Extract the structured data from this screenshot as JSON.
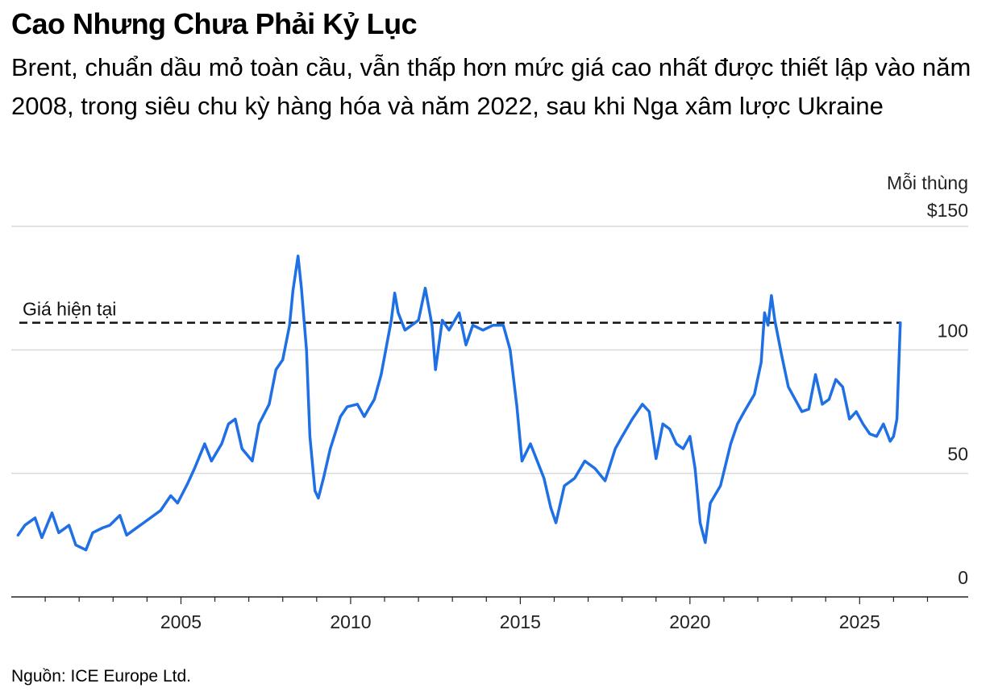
{
  "title": "Cao Nhưng Chưa Phải Kỷ Lục",
  "subtitle": "Brent, chuẩn dầu mỏ toàn cầu, vẫn thấp hơn mức giá cao nhất được thiết lập vào năm 2008, trong siêu chu kỳ hàng hóa và năm 2022, sau khi Nga xâm lược Ukraine",
  "source": "Nguồn: ICE Europe Ltd.",
  "chart_data": {
    "type": "line",
    "title": "Cao Nhưng Chưa Phải Kỷ Lục",
    "subtitle": "Brent, chuẩn dầu mỏ toàn cầu, vẫn thấp hơn mức giá cao nhất được thiết lập vào năm 2008, trong siêu chu kỳ hàng hóa và năm 2022, sau khi Nga xâm lược Ukraine",
    "xlabel": "",
    "ylabel": "Mỗi thùng",
    "xlim": [
      2000,
      2028.2
    ],
    "ylim": [
      0,
      150
    ],
    "grid": true,
    "x_ticks": [
      "2005",
      "2010",
      "2015",
      "2020",
      "2025"
    ],
    "y_ticks": [
      "$150",
      "100",
      "50",
      "0"
    ],
    "y_tick_values": [
      150,
      100,
      50,
      0
    ],
    "line_color": "#1f6fe5",
    "reference_line": {
      "label": "Giá hiện tại",
      "value": 111
    },
    "series": [
      {
        "name": "Brent",
        "x": [
          2000.2,
          2000.4,
          2000.7,
          2000.9,
          2001.2,
          2001.4,
          2001.7,
          2001.9,
          2002.2,
          2002.4,
          2002.7,
          2002.9,
          2003.2,
          2003.4,
          2003.7,
          2003.9,
          2004.2,
          2004.4,
          2004.7,
          2004.9,
          2005.2,
          2005.4,
          2005.7,
          2005.9,
          2006.2,
          2006.4,
          2006.6,
          2006.8,
          2007.1,
          2007.3,
          2007.6,
          2007.8,
          2008.0,
          2008.2,
          2008.3,
          2008.45,
          2008.55,
          2008.7,
          2008.8,
          2008.95,
          2009.05,
          2009.2,
          2009.4,
          2009.7,
          2009.9,
          2010.2,
          2010.4,
          2010.7,
          2010.9,
          2011.2,
          2011.3,
          2011.4,
          2011.6,
          2011.8,
          2012.0,
          2012.2,
          2012.4,
          2012.5,
          2012.7,
          2012.9,
          2013.2,
          2013.4,
          2013.6,
          2013.9,
          2014.2,
          2014.5,
          2014.7,
          2014.9,
          2015.05,
          2015.3,
          2015.5,
          2015.7,
          2015.9,
          2016.05,
          2016.3,
          2016.6,
          2016.9,
          2017.2,
          2017.5,
          2017.8,
          2018.0,
          2018.3,
          2018.6,
          2018.8,
          2019.0,
          2019.2,
          2019.4,
          2019.6,
          2019.8,
          2020.0,
          2020.15,
          2020.3,
          2020.45,
          2020.6,
          2020.9,
          2021.2,
          2021.4,
          2021.6,
          2021.9,
          2022.1,
          2022.2,
          2022.3,
          2022.4,
          2022.5,
          2022.7,
          2022.9,
          2023.1,
          2023.3,
          2023.5,
          2023.7,
          2023.9,
          2024.1,
          2024.3,
          2024.5,
          2024.7,
          2024.9,
          2025.1,
          2025.3,
          2025.5,
          2025.7,
          2025.9,
          2026.0,
          2026.1,
          2026.2
        ],
        "values": [
          25,
          29,
          32,
          24,
          34,
          26,
          29,
          21,
          19,
          26,
          28,
          29,
          33,
          25,
          28,
          30,
          33,
          35,
          41,
          38,
          46,
          52,
          62,
          55,
          62,
          70,
          72,
          60,
          55,
          70,
          78,
          92,
          96,
          110,
          124,
          138,
          125,
          100,
          65,
          43,
          40,
          48,
          60,
          73,
          77,
          78,
          73,
          80,
          90,
          112,
          123,
          115,
          108,
          110,
          112,
          125,
          110,
          92,
          112,
          108,
          115,
          102,
          110,
          108,
          110,
          110,
          100,
          77,
          55,
          62,
          55,
          48,
          36,
          30,
          45,
          48,
          55,
          52,
          47,
          60,
          65,
          72,
          78,
          75,
          56,
          70,
          68,
          62,
          60,
          65,
          52,
          30,
          22,
          38,
          45,
          62,
          70,
          75,
          82,
          95,
          115,
          110,
          122,
          112,
          98,
          85,
          80,
          75,
          76,
          90,
          78,
          80,
          88,
          85,
          72,
          75,
          70,
          66,
          65,
          70,
          63,
          65,
          72,
          111
        ]
      }
    ]
  }
}
